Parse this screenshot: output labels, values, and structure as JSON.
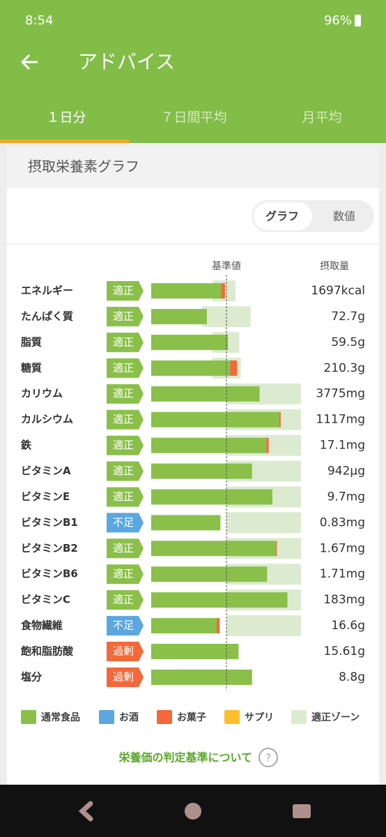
{
  "status_bar": {
    "time": "8:54",
    "battery": "96%"
  },
  "header": {
    "title": "アドバイス"
  },
  "tabs": [
    "１日分",
    "７日間平均",
    "月平均"
  ],
  "card": {
    "title": "摂取栄養素グラフ",
    "toggle": [
      "グラフ",
      "数値"
    ],
    "chart_data": {
      "type": "bar",
      "reference": {
        "label": "基準値",
        "value": 100
      },
      "value_header": "摂取量",
      "xlim": [
        0,
        199
      ],
      "categories": [
        "エネルギー",
        "たんぱく質",
        "脂質",
        "糖質",
        "カリウム",
        "カルシウム",
        "鉄",
        "ビタミンA",
        "ビタミンE",
        "ビタミンB1",
        "ビタミンB2",
        "ビタミンB6",
        "ビタミンC",
        "食物繊維",
        "飽和脂肪酸",
        "塩分"
      ],
      "status": [
        {
          "label": "適正",
          "color": "#8ac04a"
        },
        {
          "label": "適正",
          "color": "#8ac04a"
        },
        {
          "label": "適正",
          "color": "#8ac04a"
        },
        {
          "label": "適正",
          "color": "#8ac04a"
        },
        {
          "label": "適正",
          "color": "#8ac04a"
        },
        {
          "label": "適正",
          "color": "#8ac04a"
        },
        {
          "label": "適正",
          "color": "#8ac04a"
        },
        {
          "label": "適正",
          "color": "#8ac04a"
        },
        {
          "label": "適正",
          "color": "#8ac04a"
        },
        {
          "label": "不足",
          "color": "#5ba7df"
        },
        {
          "label": "適正",
          "color": "#8ac04a"
        },
        {
          "label": "適正",
          "color": "#8ac04a"
        },
        {
          "label": "適正",
          "color": "#8ac04a"
        },
        {
          "label": "不足",
          "color": "#5ba7df"
        },
        {
          "label": "過剰",
          "color": "#f4683a"
        },
        {
          "label": "過剰",
          "color": "#f4683a"
        }
      ],
      "value_labels": [
        "1697kcal",
        "72.7g",
        "59.5g",
        "210.3g",
        "3775mg",
        "1117mg",
        "17.1mg",
        "942μg",
        "9.7mg",
        "0.83mg",
        "1.67mg",
        "1.71mg",
        "183mg",
        "16.6g",
        "15.61g",
        "8.8g"
      ],
      "series": [
        {
          "name": "通常食品",
          "color": "#8ac04a",
          "values": [
            93,
            74,
            102,
            105,
            144,
            170,
            153,
            134,
            161,
            92,
            166,
            154,
            181,
            87,
            116,
            134
          ]
        },
        {
          "name": "お酒",
          "color": "#5ba7df",
          "values": [
            null,
            null,
            null,
            null,
            null,
            null,
            null,
            null,
            null,
            null,
            null,
            null,
            null,
            null,
            null,
            null
          ]
        },
        {
          "name": "お菓子",
          "color": "#f4683a",
          "values": [
            5,
            null,
            null,
            9,
            null,
            2,
            3,
            null,
            null,
            null,
            1,
            null,
            null,
            4,
            null,
            null
          ]
        },
        {
          "name": "サプリ",
          "color": "#fbbf2d",
          "values": [
            null,
            null,
            null,
            null,
            null,
            null,
            null,
            null,
            null,
            null,
            null,
            null,
            null,
            null,
            null,
            null
          ]
        }
      ],
      "zone": {
        "name": "適正ゾーン",
        "color": "#dcebd0",
        "ranges": [
          [
            81,
            112
          ],
          [
            67,
            132
          ],
          [
            81,
            117
          ],
          [
            81,
            119
          ],
          [
            100,
            199
          ],
          [
            100,
            199
          ],
          [
            100,
            199
          ],
          [
            100,
            199
          ],
          [
            100,
            199
          ],
          [
            100,
            199
          ],
          [
            100,
            199
          ],
          [
            100,
            199
          ],
          [
            100,
            199
          ],
          [
            100,
            199
          ],
          null,
          null
        ]
      }
    },
    "link": "栄養価の判定基準について"
  }
}
